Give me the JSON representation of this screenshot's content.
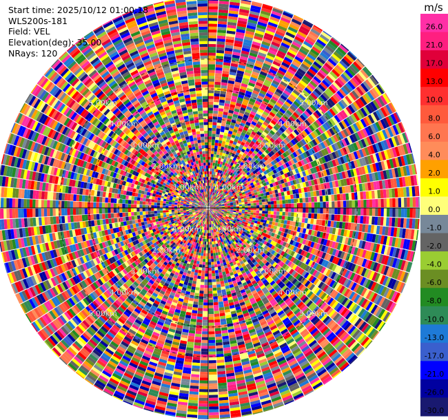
{
  "header": {
    "start_time": "Start time: 2025/10/12 01:00:18",
    "instrument": "WLS200s-181",
    "field": "Field: VEL",
    "elevation": "Elevation(deg): 35.00",
    "nrays": "NRays: 120"
  },
  "colorbar": {
    "unit": "m/s",
    "ticks": [
      "26.0",
      "21.0",
      "17.0",
      "13.0",
      "10.0",
      "8.0",
      "6.0",
      "4.0",
      "2.0",
      "1.0",
      "0.0",
      "-1.0",
      "-2.0",
      "-4.0",
      "-6.0",
      "-8.0",
      "-10.0",
      "-13.0",
      "-17.0",
      "-21.0",
      "-26.0",
      "-30.0"
    ],
    "colors_top_to_bottom": [
      "#ff2fa6",
      "#ff1f80",
      "#e0003a",
      "#ff0000",
      "#ff3030",
      "#ff5a3c",
      "#ff7650",
      "#ff8c5a",
      "#ffa000",
      "#ffff00",
      "#ffff7a",
      "#778899",
      "#646464",
      "#9acd32",
      "#6b8e23",
      "#228b22",
      "#2e8b57",
      "#1e7ad7",
      "#3a5fcd",
      "#0000ff",
      "#0000a0",
      "#191970"
    ]
  },
  "chart_data": {
    "type": "heatmap",
    "projection": "polar-ppi",
    "field": "VEL",
    "nrays": 120,
    "range_rings_km": [
      1,
      2,
      3,
      4,
      5
    ],
    "ring_labels": [
      "1.00km",
      "2.00km",
      "3.00km",
      "4.00km",
      "5.00km"
    ],
    "vmin": -30,
    "vmax": 30,
    "max_range_km": 7.1,
    "note_values": "noisy random velocities"
  }
}
